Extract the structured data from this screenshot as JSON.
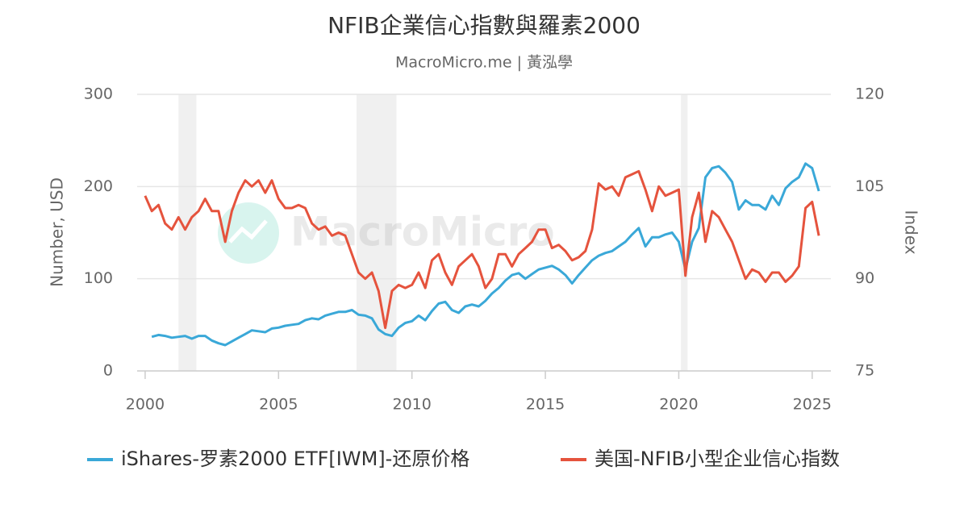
{
  "chart_data": {
    "type": "line",
    "title": "NFIB企業信心指數與羅素2000",
    "subtitle": "MacroMicro.me | 黃泓學",
    "watermark": "MacroMicro",
    "y_label": "Number, USD",
    "y2_label": "Index",
    "x": [
      2000,
      2000.25,
      2000.5,
      2000.75,
      2001,
      2001.25,
      2001.5,
      2001.75,
      2002,
      2002.25,
      2002.5,
      2002.75,
      2003,
      2003.25,
      2003.5,
      2003.75,
      2004,
      2004.25,
      2004.5,
      2004.75,
      2005,
      2005.25,
      2005.5,
      2005.75,
      2006,
      2006.25,
      2006.5,
      2006.75,
      2007,
      2007.25,
      2007.5,
      2007.75,
      2008,
      2008.25,
      2008.5,
      2008.75,
      2009,
      2009.25,
      2009.5,
      2009.75,
      2010,
      2010.25,
      2010.5,
      2010.75,
      2011,
      2011.25,
      2011.5,
      2011.75,
      2012,
      2012.25,
      2012.5,
      2012.75,
      2013,
      2013.25,
      2013.5,
      2013.75,
      2014,
      2014.25,
      2014.5,
      2014.75,
      2015,
      2015.25,
      2015.5,
      2015.75,
      2016,
      2016.25,
      2016.5,
      2016.75,
      2017,
      2017.25,
      2017.5,
      2017.75,
      2018,
      2018.25,
      2018.5,
      2018.75,
      2019,
      2019.25,
      2019.5,
      2019.75,
      2020,
      2020.25,
      2020.5,
      2020.75,
      2021,
      2021.25,
      2021.5,
      2021.75,
      2022,
      2022.25,
      2022.5,
      2022.75,
      2023,
      2023.25,
      2023.5,
      2023.75,
      2024,
      2024.25,
      2024.5,
      2024.75,
      2025,
      2025.25
    ],
    "series": [
      {
        "name": "iShares-罗素2000 ETF[IWM]-还原价格",
        "color": "#3aa8d8",
        "axis": "y",
        "values": [
          null,
          37,
          39,
          38,
          36,
          37,
          38,
          35,
          38,
          38,
          33,
          30,
          28,
          32,
          36,
          40,
          44,
          43,
          42,
          46,
          47,
          49,
          50,
          51,
          55,
          57,
          56,
          60,
          62,
          64,
          64,
          66,
          61,
          60,
          57,
          45,
          40,
          38,
          47,
          52,
          54,
          60,
          55,
          65,
          73,
          75,
          66,
          63,
          70,
          72,
          70,
          76,
          84,
          90,
          98,
          104,
          106,
          100,
          105,
          110,
          112,
          114,
          110,
          104,
          95,
          104,
          112,
          120,
          125,
          128,
          130,
          135,
          140,
          148,
          155,
          135,
          145,
          145,
          148,
          150,
          140,
          110,
          140,
          155,
          210,
          220,
          222,
          215,
          205,
          175,
          185,
          180,
          180,
          175,
          190,
          180,
          198,
          205,
          210,
          225,
          220,
          195
        ]
      },
      {
        "name": "美国-NFIB小型企业信心指数",
        "color": "#e5533d",
        "axis": "y2",
        "values": [
          103.5,
          101,
          102,
          99,
          98,
          100,
          98,
          100,
          101,
          103,
          101,
          101,
          96,
          101,
          104,
          106,
          105,
          106,
          104,
          106,
          103,
          101.5,
          101.5,
          102,
          101.5,
          99,
          98,
          98.5,
          97,
          97.5,
          97,
          94,
          91,
          90,
          91,
          88,
          82,
          88,
          89,
          88.5,
          89,
          91,
          88.5,
          93,
          94,
          91,
          89,
          92,
          93,
          94,
          92,
          88.5,
          90,
          94,
          94,
          92,
          94,
          95,
          96,
          98,
          98,
          95,
          95.5,
          94.5,
          93,
          93.5,
          94.5,
          98,
          105.5,
          104.5,
          105,
          103.5,
          106.5,
          107,
          107.5,
          104.5,
          101,
          105,
          103.5,
          104,
          104.5,
          90.5,
          100,
          104,
          96,
          101,
          100,
          98,
          96,
          93,
          90,
          91.5,
          91,
          89.5,
          91,
          91,
          89.5,
          90.5,
          92,
          101.5,
          102.5,
          97
        ]
      }
    ],
    "shaded_periods": [
      [
        2001.25,
        2001.92
      ],
      [
        2007.92,
        2009.42
      ],
      [
        2020.08,
        2020.33
      ]
    ],
    "xlim": [
      1999.7,
      2025.7
    ],
    "xticks": [
      2000,
      2005,
      2010,
      2015,
      2020,
      2025
    ],
    "ylim": [
      0,
      300
    ],
    "yticks": [
      0,
      100,
      200,
      300
    ],
    "y2lim": [
      75,
      120
    ],
    "y2ticks": [
      75,
      90,
      105,
      120
    ],
    "grid": true,
    "legend": "bottom"
  }
}
